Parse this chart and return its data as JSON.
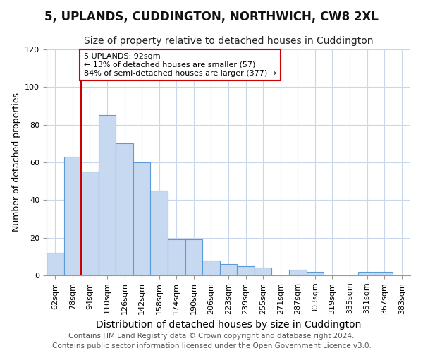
{
  "title": "5, UPLANDS, CUDDINGTON, NORTHWICH, CW8 2XL",
  "subtitle": "Size of property relative to detached houses in Cuddington",
  "xlabel": "Distribution of detached houses by size in Cuddington",
  "ylabel": "Number of detached properties",
  "bin_labels": [
    "62sqm",
    "78sqm",
    "94sqm",
    "110sqm",
    "126sqm",
    "142sqm",
    "158sqm",
    "174sqm",
    "190sqm",
    "206sqm",
    "223sqm",
    "239sqm",
    "255sqm",
    "271sqm",
    "287sqm",
    "303sqm",
    "319sqm",
    "335sqm",
    "351sqm",
    "367sqm",
    "383sqm"
  ],
  "bar_heights": [
    12,
    63,
    55,
    85,
    70,
    60,
    45,
    19,
    19,
    8,
    6,
    5,
    4,
    0,
    3,
    2,
    0,
    0,
    2,
    2,
    0
  ],
  "bar_color": "#c6d9f0",
  "bar_edge_color": "#5b9bd5",
  "vline_idx": 2,
  "vline_color": "#cc0000",
  "annotation_line1": "5 UPLANDS: 92sqm",
  "annotation_line2": "← 13% of detached houses are smaller (57)",
  "annotation_line3": "84% of semi-detached houses are larger (377) →",
  "annotation_box_color": "#ffffff",
  "annotation_box_edge": "#cc0000",
  "ylim": [
    0,
    120
  ],
  "yticks": [
    0,
    20,
    40,
    60,
    80,
    100,
    120
  ],
  "footer": "Contains HM Land Registry data © Crown copyright and database right 2024.\nContains public sector information licensed under the Open Government Licence v3.0.",
  "title_fontsize": 12,
  "subtitle_fontsize": 10,
  "xlabel_fontsize": 10,
  "ylabel_fontsize": 9,
  "tick_fontsize": 8,
  "footer_fontsize": 7.5
}
